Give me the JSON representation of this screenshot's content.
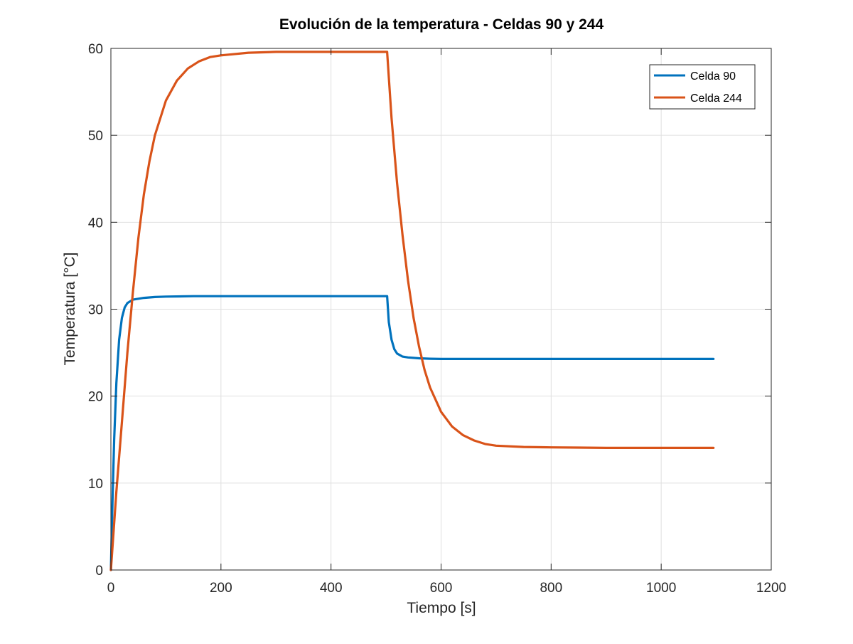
{
  "chart_data": {
    "type": "line",
    "title": "Evolución de la temperatura - Celdas 90 y 244",
    "xlabel": "Tiempo [s]",
    "ylabel": "Temperatura [°C]",
    "xlim": [
      0,
      1200
    ],
    "ylim": [
      0,
      60
    ],
    "xticks": [
      0,
      200,
      400,
      600,
      800,
      1000,
      1200
    ],
    "yticks": [
      0,
      10,
      20,
      30,
      40,
      50,
      60
    ],
    "xtick_labels": [
      "0",
      "200",
      "400",
      "600",
      "800",
      "1000",
      "1200"
    ],
    "ytick_labels": [
      "0",
      "10",
      "20",
      "30",
      "40",
      "50",
      "60"
    ],
    "grid": true,
    "legend_position": "top-right",
    "series": [
      {
        "name": "Celda 90",
        "color": "#0072BD",
        "x": [
          0,
          3,
          6,
          10,
          15,
          20,
          25,
          30,
          40,
          50,
          60,
          80,
          100,
          150,
          200,
          300,
          400,
          500,
          502,
          505,
          510,
          515,
          520,
          530,
          540,
          560,
          580,
          600,
          700,
          800,
          900,
          1000,
          1095
        ],
        "y": [
          0,
          8,
          15,
          21.5,
          26.5,
          29.0,
          30.2,
          30.7,
          31.1,
          31.2,
          31.3,
          31.4,
          31.45,
          31.5,
          31.5,
          31.5,
          31.5,
          31.5,
          31.5,
          28.5,
          26.5,
          25.4,
          24.9,
          24.55,
          24.45,
          24.35,
          24.3,
          24.28,
          24.28,
          24.28,
          24.28,
          24.28,
          24.28
        ]
      },
      {
        "name": "Celda 244",
        "color": "#D95319",
        "x": [
          0,
          10,
          20,
          30,
          40,
          50,
          60,
          70,
          80,
          100,
          120,
          140,
          160,
          180,
          200,
          250,
          300,
          400,
          500,
          502,
          510,
          520,
          530,
          540,
          550,
          560,
          570,
          580,
          600,
          620,
          640,
          660,
          680,
          700,
          750,
          800,
          850,
          900,
          1000,
          1095
        ],
        "y": [
          0,
          9,
          17,
          25,
          32,
          38.2,
          43.2,
          47.0,
          50.0,
          54.0,
          56.3,
          57.7,
          58.5,
          59.0,
          59.2,
          59.5,
          59.6,
          59.6,
          59.6,
          59.6,
          52.0,
          44.5,
          38.5,
          33.3,
          29.0,
          25.7,
          23.0,
          21.0,
          18.2,
          16.5,
          15.5,
          14.9,
          14.5,
          14.3,
          14.15,
          14.1,
          14.08,
          14.05,
          14.05,
          14.05
        ]
      }
    ]
  }
}
